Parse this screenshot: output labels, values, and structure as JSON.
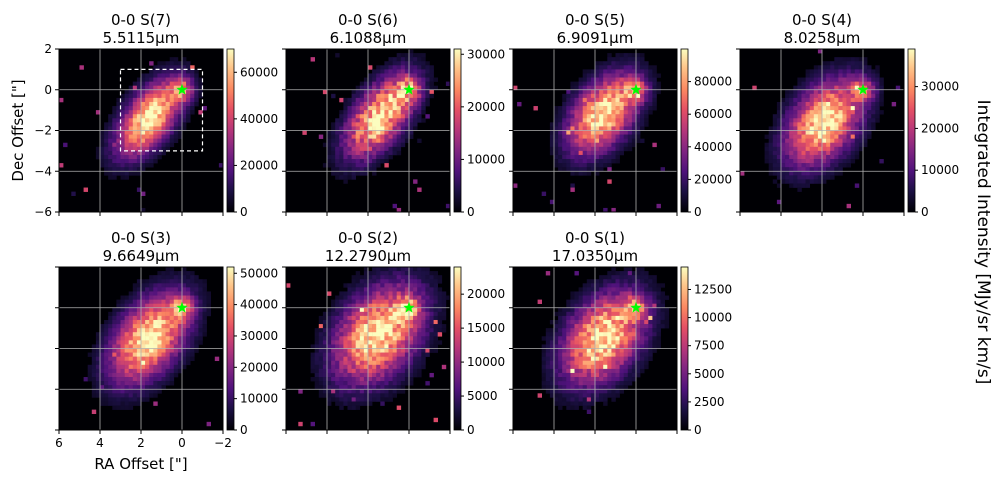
{
  "figure": {
    "colorbar_label": "Integrated Intensity [MJy/sr km/s]",
    "colormap": "magma",
    "star_color": "#00ff00"
  },
  "chart_data": [
    {
      "type": "heatmap",
      "title": "0-0 S(7)",
      "subtitle": "5.5115μm",
      "xlabel": "RA Offset [\"]",
      "ylabel": "Dec Offset [\"]",
      "xlim": [
        6,
        -2
      ],
      "ylim": [
        -6,
        2
      ],
      "grid": true,
      "xticks": [
        "6",
        "4",
        "2",
        "0",
        "−2"
      ],
      "yticks": [
        "2",
        "0",
        "−2",
        "−4",
        "−6"
      ],
      "colorbar": {
        "min": 0,
        "max": 70000,
        "ticks": [
          "0",
          "20000",
          "40000",
          "60000"
        ]
      },
      "star": {
        "ra": 0,
        "dec": 0
      },
      "region_box": {
        "ra": [
          3,
          -1
        ],
        "dec": [
          1,
          -3
        ]
      },
      "show_xticklabels": false,
      "show_yticklabels": true
    },
    {
      "type": "heatmap",
      "title": "0-0 S(6)",
      "subtitle": "6.1088μm",
      "xlim": [
        6,
        -2
      ],
      "ylim": [
        -6,
        2
      ],
      "grid": true,
      "colorbar": {
        "min": 0,
        "max": 31000,
        "ticks": [
          "0",
          "10000",
          "20000",
          "30000"
        ]
      },
      "star": {
        "ra": 0,
        "dec": 0
      },
      "show_xticklabels": false,
      "show_yticklabels": false
    },
    {
      "type": "heatmap",
      "title": "0-0 S(5)",
      "subtitle": "6.9091μm",
      "xlim": [
        6,
        -2
      ],
      "ylim": [
        -6,
        2
      ],
      "grid": true,
      "colorbar": {
        "min": 0,
        "max": 100000,
        "ticks": [
          "0",
          "20000",
          "40000",
          "60000",
          "80000"
        ]
      },
      "star": {
        "ra": 0,
        "dec": 0
      },
      "show_xticklabels": false,
      "show_yticklabels": false
    },
    {
      "type": "heatmap",
      "title": "0-0 S(4)",
      "subtitle": "8.0258μm",
      "xlim": [
        6,
        -2
      ],
      "ylim": [
        -6,
        2
      ],
      "grid": true,
      "colorbar": {
        "min": 0,
        "max": 39000,
        "ticks": [
          "0",
          "10000",
          "20000",
          "30000"
        ]
      },
      "star": {
        "ra": 0,
        "dec": 0
      },
      "show_xticklabels": false,
      "show_yticklabels": false
    },
    {
      "type": "heatmap",
      "title": "0-0 S(3)",
      "subtitle": "9.6649μm",
      "xlabel": "RA Offset [\"]",
      "xlim": [
        6,
        -2
      ],
      "ylim": [
        -6,
        2
      ],
      "grid": true,
      "xticks": [
        "6",
        "4",
        "2",
        "0",
        "−2"
      ],
      "colorbar": {
        "min": 0,
        "max": 52000,
        "ticks": [
          "0",
          "10000",
          "20000",
          "30000",
          "40000",
          "50000"
        ]
      },
      "star": {
        "ra": 0,
        "dec": 0
      },
      "show_xticklabels": true,
      "show_yticklabels": false
    },
    {
      "type": "heatmap",
      "title": "0-0 S(2)",
      "subtitle": "12.2790μm",
      "xlim": [
        6,
        -2
      ],
      "ylim": [
        -6,
        2
      ],
      "grid": true,
      "colorbar": {
        "min": 0,
        "max": 24000,
        "ticks": [
          "0",
          "5000",
          "10000",
          "15000",
          "20000"
        ]
      },
      "star": {
        "ra": 0,
        "dec": 0
      },
      "show_xticklabels": false,
      "show_yticklabels": false
    },
    {
      "type": "heatmap",
      "title": "0-0 S(1)",
      "subtitle": "17.0350μm",
      "xlim": [
        6,
        -2
      ],
      "ylim": [
        -6,
        2
      ],
      "grid": true,
      "colorbar": {
        "min": 0,
        "max": 14500,
        "ticks": [
          "0",
          "2500",
          "5000",
          "7500",
          "10000",
          "12500"
        ]
      },
      "star": {
        "ra": 0,
        "dec": 0
      },
      "show_xticklabels": false,
      "show_yticklabels": false
    }
  ]
}
